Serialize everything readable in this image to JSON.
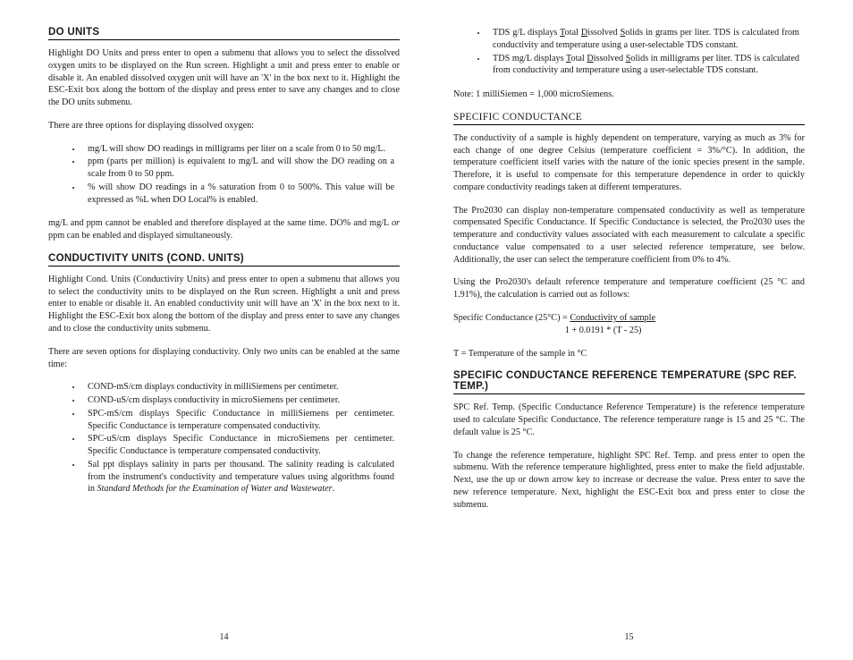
{
  "left": {
    "h1": "DO UNITS",
    "p1": "Highlight DO Units and press enter to open a submenu that allows you to select the dissolved oxygen units to be displayed on the Run screen. Highlight a unit and press enter to enable or disable it. An enabled dissolved oxygen unit will have an 'X' in the box next to it. Highlight the ESC-Exit box along the bottom of the display and press enter to save any changes and to close the DO units submenu.",
    "p2": "There are three options for displaying dissolved oxygen:",
    "li1": "mg/L will show DO readings in milligrams per liter on a scale from 0 to 50 mg/L.",
    "li2": "ppm (parts per million) is equivalent to mg/L and will show the DO reading on a scale from 0 to 50 ppm.",
    "li3": "% will show DO readings in a % saturation from 0 to 500%. This value will be expressed as %L when DO Local% is enabled.",
    "p3a": "mg/L and ppm cannot be enabled and therefore displayed at the same time. DO% and mg/L ",
    "p3b": "or",
    "p3c": " ppm can be enabled and displayed simultaneously.",
    "h2": "CONDUCTIVITY UNITS (COND. UNITS)",
    "p4": "Highlight Cond. Units (Conductivity Units) and press enter to open a submenu that allows you to select the conductivity units to be displayed on the Run screen. Highlight a unit and press enter to enable or disable it. An enabled conductivity unit will have an 'X' in the box next to it. Highlight the ESC-Exit box along the bottom of the display and press enter to save any changes and to close the conductivity units submenu.",
    "p5": "There are seven options for displaying conductivity. Only two units can be enabled at the same time:",
    "li4": "COND-mS/cm displays conductivity in milliSiemens per centimeter.",
    "li5": "COND-uS/cm displays conductivity in microSiemens per centimeter.",
    "li6": "SPC-mS/cm displays Specific Conductance in milliSiemens per centimeter. Specific Conductance is temperature compensated conductivity.",
    "li7": "SPC-uS/cm displays Specific Conductance in microSiemens per centimeter. Specific Conductance is temperature compensated conductivity.",
    "li8a": "Sal ppt displays salinity in parts per thousand. The salinity reading is calculated from the instrument's conductivity and temperature values using algorithms found in ",
    "li8b": "Standard Methods for the Examination of Water and Wastewater",
    "li8c": ".",
    "page": "14"
  },
  "right": {
    "li1a": "TDS g/L displays ",
    "li1b": "T",
    "li1c": "otal ",
    "li1d": "D",
    "li1e": "issolved ",
    "li1f": "S",
    "li1g": "olids in grams per liter. TDS is calculated from conductivity and temperature using a user-selectable TDS constant.",
    "li2a": "TDS mg/L displays ",
    "li2b": "T",
    "li2c": "otal ",
    "li2d": "D",
    "li2e": "issolved ",
    "li2f": "S",
    "li2g": "olids in milligrams per liter. TDS is calculated from conductivity and temperature using a user-selectable TDS constant.",
    "note": "Note:  1 milliSiemen = 1,000 microSiemens.",
    "h1": "SPECIFIC CONDUCTANCE",
    "p1": "The conductivity of a sample is highly dependent on temperature, varying as much as 3% for each change of one degree Celsius (temperature coefficient = 3%/°C). In addition, the temperature coefficient itself varies with the nature of the ionic species present in the sample. Therefore, it is useful to compensate for this temperature dependence in order to quickly compare conductivity readings taken at different temperatures.",
    "p2": "The Pro2030 can display non-temperature compensated conductivity as well as temperature compensated Specific Conductance. If Specific Conductance is selected, the Pro2030 uses the temperature and conductivity values associated with each measurement to calculate a specific conductance value compensated to a user selected reference temperature, see below. Additionally, the user can select the temperature coefficient from 0% to 4%.",
    "p3": "Using the Pro2030's default reference temperature and temperature coefficient (25 °C and 1.91%), the calculation is carried out as follows:",
    "f1a": "Specific Conductance (25°C) = ",
    "f1b": "Conductivity of sample",
    "f2": "                                                 1 + 0.0191 * (T - 25)",
    "p4": "T = Temperature of the sample in °C",
    "h2": "SPECIFIC CONDUCTANCE REFERENCE TEMPERATURE (SPC REF. TEMP.)",
    "p5": "SPC Ref. Temp. (Specific Conductance Reference Temperature) is the reference temperature used to calculate Specific Conductance. The reference temperature range is 15 and 25 °C. The default value is 25 °C.",
    "p6": "To change the reference temperature, highlight SPC Ref. Temp. and press enter to open the submenu. With the reference temperature highlighted, press enter to make the field adjustable. Next, use the up or down arrow key to increase or decrease the value. Press enter to save the new reference temperature. Next, highlight the ESC-Exit box and press enter to close the submenu.",
    "page": "15"
  }
}
